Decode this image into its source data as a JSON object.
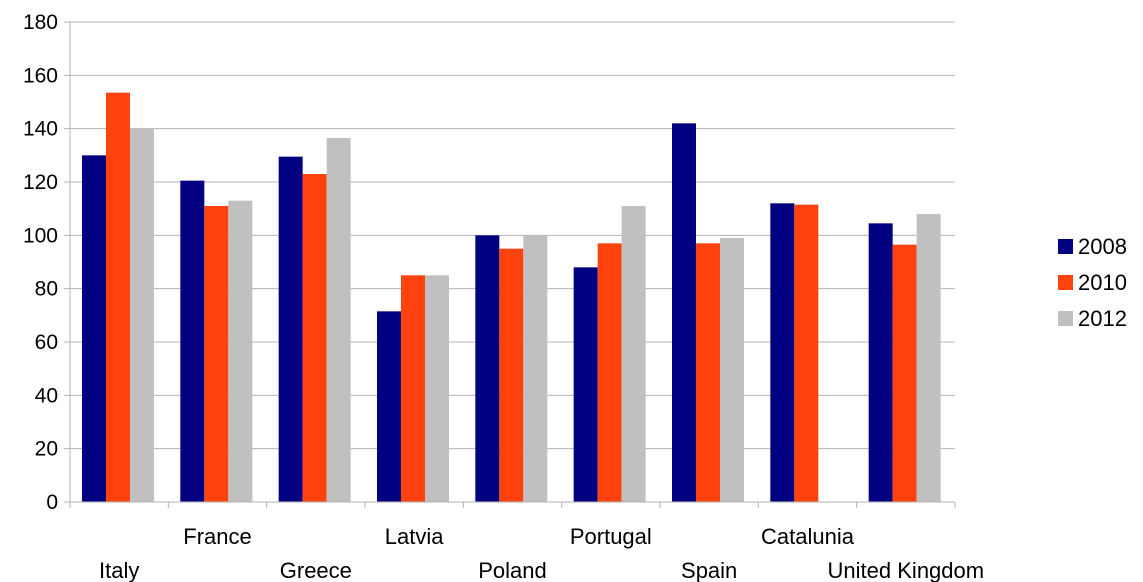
{
  "chart_data": {
    "type": "bar",
    "categories": [
      "Italy",
      "France",
      "Greece",
      "Latvia",
      "Poland",
      "Portugal",
      "Spain",
      "Catalunia",
      "United Kingdom"
    ],
    "series": [
      {
        "name": "2008",
        "color": "#000080",
        "values": [
          130,
          120.5,
          129.5,
          71.5,
          100,
          88,
          142,
          112,
          104.5
        ]
      },
      {
        "name": "2010",
        "color": "#ff420e",
        "values": [
          153.5,
          111,
          123,
          85,
          95,
          97,
          97,
          111.5,
          96.5
        ]
      },
      {
        "name": "2012",
        "color": "#c0c0c0",
        "values": [
          140,
          113,
          136.5,
          85,
          100,
          111,
          99,
          null,
          108
        ]
      }
    ],
    "y_ticks": [
      "0",
      "20",
      "40",
      "60",
      "80",
      "100",
      "120",
      "140",
      "160",
      "180"
    ],
    "ylim": [
      0,
      180
    ],
    "grid": true,
    "legend": "right",
    "title": "",
    "xlabel": "",
    "ylabel": ""
  }
}
